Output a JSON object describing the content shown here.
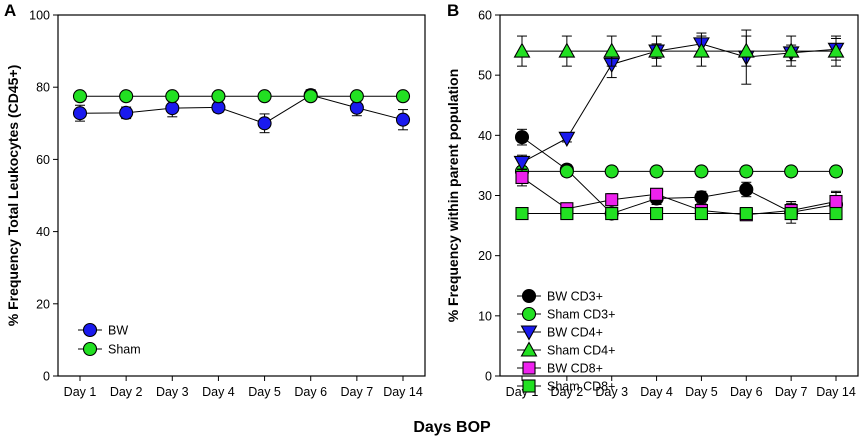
{
  "figure": {
    "common_xlabel": "Days BOP"
  },
  "chart_data": [
    {
      "panel": "A",
      "type": "line",
      "title": "",
      "xlabel": "",
      "ylabel": "% Frequency Total Leukocytes (CD45+)",
      "ylim": [
        0,
        100
      ],
      "yticks": [
        0,
        20,
        40,
        60,
        80,
        100
      ],
      "categories": [
        "Day 1",
        "Day 2",
        "Day 3",
        "Day 4",
        "Day 5",
        "Day 6",
        "Day 7",
        "Day 14"
      ],
      "legend_position": "bottom-left",
      "series": [
        {
          "name": "BW",
          "marker": "circle",
          "color": "#1a1aee",
          "values": [
            72.8,
            72.9,
            74.2,
            74.4,
            70.0,
            77.8,
            74.3,
            71.0
          ],
          "errors": [
            2.2,
            1.6,
            2.4,
            1.4,
            2.6,
            1.5,
            2.2,
            2.8
          ]
        },
        {
          "name": "Sham",
          "marker": "circle",
          "color": "#22e022",
          "values": [
            77.5,
            77.5,
            77.5,
            77.5,
            77.5,
            77.5,
            77.5,
            77.5
          ],
          "errors": [
            0,
            0,
            0,
            0,
            0,
            0,
            0,
            0
          ]
        }
      ]
    },
    {
      "panel": "B",
      "type": "line",
      "title": "",
      "xlabel": "",
      "ylabel": "% Frequency within parent population",
      "ylim": [
        0,
        60
      ],
      "yticks": [
        0,
        10,
        20,
        30,
        40,
        50,
        60
      ],
      "categories": [
        "Day 1",
        "Day 2",
        "Day 3",
        "Day 4",
        "Day 5",
        "Day 6",
        "Day 7",
        "Day 14"
      ],
      "legend_position": "bottom-left",
      "series": [
        {
          "name": "BW CD3+",
          "marker": "circle",
          "color": "#000000",
          "values": [
            39.7,
            34.3,
            27.0,
            29.5,
            29.7,
            31.0,
            27.2,
            28.5
          ],
          "errors": [
            1.3,
            0.8,
            0.8,
            1.0,
            1.0,
            1.2,
            1.8,
            2.2
          ]
        },
        {
          "name": "Sham CD3+",
          "marker": "circle",
          "color": "#22e022",
          "values": [
            34.0,
            34.0,
            34.0,
            34.0,
            34.0,
            34.0,
            34.0,
            34.0
          ],
          "errors": [
            0.8,
            0.8,
            0.8,
            0.8,
            0.8,
            0.8,
            0.8,
            0.8
          ]
        },
        {
          "name": "BW CD4+",
          "marker": "triangle-down",
          "color": "#1a1aee",
          "values": [
            35.5,
            39.5,
            51.8,
            54.0,
            55.2,
            53.0,
            53.7,
            54.3
          ],
          "errors": [
            1.2,
            0.6,
            2.2,
            1.2,
            1.8,
            4.5,
            1.3,
            1.8
          ]
        },
        {
          "name": "Sham CD4+",
          "marker": "triangle-up",
          "color": "#22e022",
          "values": [
            54.0,
            54.0,
            54.0,
            54.0,
            54.0,
            54.0,
            54.0,
            54.0
          ],
          "errors": [
            2.5,
            2.5,
            2.5,
            2.5,
            2.5,
            2.5,
            2.5,
            2.5
          ]
        },
        {
          "name": "BW CD8+",
          "marker": "square",
          "color": "#ee22ee",
          "values": [
            33.0,
            27.8,
            29.3,
            30.2,
            27.5,
            26.8,
            27.5,
            29.0
          ],
          "errors": [
            1.4,
            0.8,
            1.0,
            0.8,
            1.0,
            0.8,
            1.2,
            1.5
          ]
        },
        {
          "name": "Sham CD8+",
          "marker": "square",
          "color": "#22e022",
          "values": [
            27.0,
            27.0,
            27.0,
            27.0,
            27.0,
            27.0,
            27.0,
            27.0
          ],
          "errors": [
            0,
            0,
            0,
            0,
            0,
            0,
            0,
            0
          ]
        }
      ]
    }
  ]
}
